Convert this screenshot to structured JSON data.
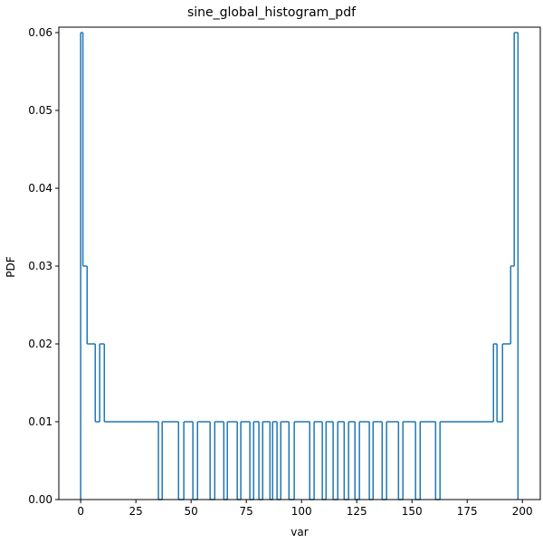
{
  "chart_data": {
    "type": "histogram",
    "title": "sine_global_histogram_pdf",
    "x_label": "var",
    "y_label": "PDF",
    "color": "#1f77b4",
    "bins": [
      0,
      1,
      2.9,
      6.6,
      8.6,
      10.7,
      35.2,
      36.9,
      44.3,
      46.7,
      50.8,
      52.9,
      58.6,
      60.7,
      64.8,
      66.4,
      70.9,
      72.5,
      76.6,
      78.3,
      80.7,
      82.4,
      85.7,
      86.9,
      88.9,
      90.6,
      94.3,
      96.7,
      103.7,
      105.7,
      109.4,
      111.1,
      114.3,
      116.4,
      119.3,
      121.3,
      124.2,
      126.2,
      130.7,
      132.4,
      136.5,
      138.5,
      143.9,
      145.9,
      151.6,
      153.7,
      160.7,
      162.7,
      186.9,
      188.5,
      191,
      194.7,
      196.3,
      198
    ],
    "values": [
      0.06,
      0.03,
      0.02,
      0.01,
      0.02,
      0.01,
      0,
      0.01,
      0,
      0.01,
      0,
      0.01,
      0,
      0.01,
      0,
      0.01,
      0,
      0.01,
      0,
      0.01,
      0,
      0.01,
      0,
      0.01,
      0,
      0.01,
      0,
      0.01,
      0,
      0.01,
      0,
      0.01,
      0,
      0.01,
      0,
      0.01,
      0,
      0.01,
      0,
      0.01,
      0,
      0.01,
      0,
      0.01,
      0,
      0.01,
      0,
      0.01,
      0.02,
      0.01,
      0.02,
      0.03,
      0.06
    ],
    "xlim": [
      -9.9,
      208.1
    ],
    "ylim": [
      0,
      0.0607
    ],
    "xticks": [
      0,
      25,
      50,
      75,
      100,
      125,
      150,
      175,
      200
    ],
    "yticks": [
      {
        "value": 0,
        "label": "0.00"
      },
      {
        "value": 0.01,
        "label": "0.01"
      },
      {
        "value": 0.02,
        "label": "0.02"
      },
      {
        "value": 0.03,
        "label": "0.03"
      },
      {
        "value": 0.04,
        "label": "0.04"
      },
      {
        "value": 0.05,
        "label": "0.05"
      },
      {
        "value": 0.06,
        "label": "0.06"
      }
    ]
  }
}
